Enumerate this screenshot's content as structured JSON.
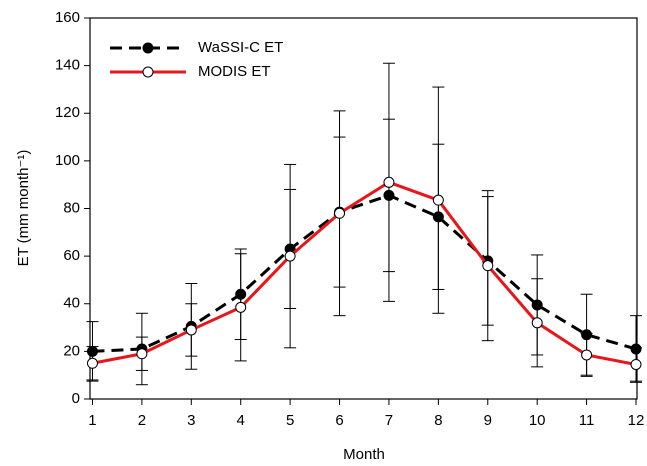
{
  "chart_data": {
    "type": "line",
    "x_label": "Month",
    "y_label": "ET (mm month⁻¹)",
    "x": [
      1,
      2,
      3,
      4,
      5,
      6,
      7,
      8,
      9,
      10,
      11,
      12
    ],
    "series": [
      {
        "name": "WaSSI-C ET",
        "color": "#000000",
        "dashed": true,
        "marker_fill": "#000000",
        "values": [
          20,
          21,
          30.5,
          44,
          63,
          78.5,
          85.5,
          76.5,
          58,
          39.5,
          27,
          21
        ],
        "errors": [
          12.5,
          15,
          18,
          19,
          25,
          31.5,
          32,
          30.5,
          27,
          21,
          17,
          14
        ]
      },
      {
        "name": "MODIS ET",
        "color": "#e8161b",
        "dashed": false,
        "marker_fill": "#ffffff",
        "values": [
          15,
          19,
          29,
          38.5,
          60,
          78,
          91,
          83.5,
          56,
          32,
          18.5,
          14.5
        ],
        "errors": [
          7,
          7,
          11,
          22.5,
          38.5,
          43,
          50,
          47.5,
          31.5,
          18.5,
          9,
          7
        ]
      }
    ],
    "xlim": [
      0.95,
      12.02
    ],
    "xticks": [
      1,
      2,
      3,
      4,
      5,
      6,
      7,
      8,
      9,
      10,
      11,
      12
    ],
    "ylim": [
      0,
      160
    ],
    "yticks": [
      0,
      20,
      40,
      60,
      80,
      100,
      120,
      140,
      160
    ],
    "legend": "upper-left",
    "grid": false
  }
}
